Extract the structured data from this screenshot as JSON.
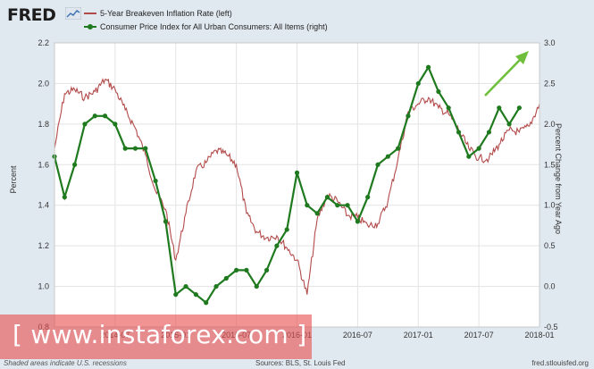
{
  "header": {
    "logo_text": "FRED",
    "logo_icon": "line-chart-icon"
  },
  "legend": [
    {
      "label": "5-Year Breakeven Inflation Rate (left)",
      "color": "#b34a4a",
      "marker": "line"
    },
    {
      "label": "Consumer Price Index for All Urban Consumers: All Items (right)",
      "color": "#1f7a1f",
      "marker": "line-dot"
    }
  ],
  "footer": {
    "recession_note": "Shaded areas indicate U.S. recessions",
    "sources": "Sources: BLS, St. Louis Fed",
    "site": "fred.stlouisfed.org"
  },
  "watermark": {
    "text": "[ www.instaforex.com ]"
  },
  "colors": {
    "background": "#e1e9f0",
    "plot_background": "#ffffff",
    "breakeven_line": "#b34a4a",
    "cpi_line": "#1f7a1f",
    "arrow": "#6fbf3c",
    "watermark": "#e85050"
  },
  "chart_data": {
    "type": "line",
    "ylabel": "Percent",
    "y2label": "Percent Change from Year Ago",
    "ylim": [
      0.8,
      2.2
    ],
    "y2lim": [
      -0.5,
      3.0
    ],
    "yticks": [
      "0.8",
      "1.0",
      "1.2",
      "1.4",
      "1.6",
      "1.8",
      "2.0",
      "2.2"
    ],
    "y2ticks": [
      "-0.5",
      "0.0",
      "0.5",
      "1.0",
      "1.5",
      "2.0",
      "2.5",
      "3.0"
    ],
    "xlim": [
      "2014-01",
      "2018-01"
    ],
    "xticks": [
      "2014-07",
      "2015-01",
      "2015-07",
      "2016-01",
      "2016-07",
      "2017-01",
      "2017-07",
      "2018-01"
    ],
    "grid": true,
    "legend_position": "top-left",
    "series": [
      {
        "name": "5-Year Breakeven Inflation Rate (left)",
        "axis": "left",
        "x": [
          "2014-01",
          "2014-02",
          "2014-03",
          "2014-04",
          "2014-05",
          "2014-06",
          "2014-07",
          "2014-08",
          "2014-09",
          "2014-10",
          "2014-11",
          "2014-12",
          "2015-01",
          "2015-02",
          "2015-03",
          "2015-04",
          "2015-05",
          "2015-06",
          "2015-07",
          "2015-08",
          "2015-09",
          "2015-10",
          "2015-11",
          "2015-12",
          "2016-01",
          "2016-02",
          "2016-03",
          "2016-04",
          "2016-05",
          "2016-06",
          "2016-07",
          "2016-08",
          "2016-09",
          "2016-10",
          "2016-11",
          "2016-12",
          "2017-01",
          "2017-02",
          "2017-03",
          "2017-04",
          "2017-05",
          "2017-06",
          "2017-07",
          "2017-08",
          "2017-09",
          "2017-10",
          "2017-11",
          "2017-12",
          "2018-01"
        ],
        "values": [
          1.68,
          1.95,
          1.97,
          1.93,
          1.96,
          2.02,
          1.97,
          1.87,
          1.78,
          1.65,
          1.47,
          1.38,
          1.13,
          1.36,
          1.57,
          1.61,
          1.67,
          1.65,
          1.6,
          1.36,
          1.27,
          1.24,
          1.25,
          1.19,
          1.13,
          0.96,
          1.33,
          1.45,
          1.42,
          1.35,
          1.34,
          1.3,
          1.31,
          1.42,
          1.63,
          1.86,
          1.9,
          1.93,
          1.88,
          1.85,
          1.77,
          1.68,
          1.63,
          1.63,
          1.7,
          1.77,
          1.76,
          1.79,
          1.9
        ]
      },
      {
        "name": "Consumer Price Index for All Urban Consumers: All Items (right)",
        "axis": "right",
        "x": [
          "2014-01",
          "2014-02",
          "2014-03",
          "2014-04",
          "2014-05",
          "2014-06",
          "2014-07",
          "2014-08",
          "2014-09",
          "2014-10",
          "2014-11",
          "2014-12",
          "2015-01",
          "2015-02",
          "2015-03",
          "2015-04",
          "2015-05",
          "2015-06",
          "2015-07",
          "2015-08",
          "2015-09",
          "2015-10",
          "2015-11",
          "2015-12",
          "2016-01",
          "2016-02",
          "2016-03",
          "2016-04",
          "2016-05",
          "2016-06",
          "2016-07",
          "2016-08",
          "2016-09",
          "2016-10",
          "2016-11",
          "2016-12",
          "2017-01",
          "2017-02",
          "2017-03",
          "2017-04",
          "2017-05",
          "2017-06",
          "2017-07",
          "2017-08",
          "2017-09",
          "2017-10",
          "2017-11"
        ],
        "values": [
          1.6,
          1.1,
          1.5,
          2.0,
          2.1,
          2.1,
          2.0,
          1.7,
          1.7,
          1.7,
          1.3,
          0.8,
          -0.1,
          0.0,
          -0.1,
          -0.2,
          0.0,
          0.1,
          0.2,
          0.2,
          0.0,
          0.2,
          0.5,
          0.7,
          1.4,
          1.0,
          0.9,
          1.1,
          1.0,
          1.0,
          0.8,
          1.1,
          1.5,
          1.6,
          1.7,
          2.1,
          2.5,
          2.7,
          2.4,
          2.2,
          1.9,
          1.6,
          1.7,
          1.9,
          2.2,
          2.0,
          2.2
        ]
      }
    ]
  }
}
